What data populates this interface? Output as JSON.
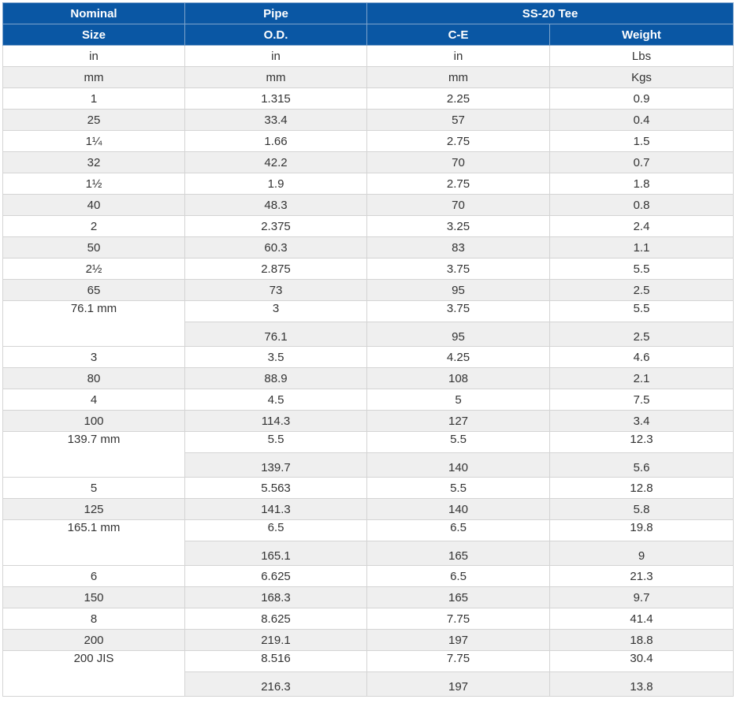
{
  "headers": {
    "nominal_line1": "Nominal",
    "nominal_line2": "Size",
    "pipe_line1": "Pipe",
    "pipe_line2": "O.D.",
    "group": "SS-20 Tee",
    "ce": "C-E",
    "weight": "Weight"
  },
  "units": {
    "in": [
      "in",
      "in",
      "in",
      "Lbs"
    ],
    "mm": [
      "mm",
      "mm",
      "mm",
      "Kgs"
    ]
  },
  "rows": [
    {
      "size": "1",
      "od": "1.315",
      "ce": "2.25",
      "weight": "0.9"
    },
    {
      "size": "25",
      "od": "33.4",
      "ce": "57",
      "weight": "0.4"
    },
    {
      "size": "1¼",
      "od": "1.66",
      "ce": "2.75",
      "weight": "1.5"
    },
    {
      "size": "32",
      "od": "42.2",
      "ce": "70",
      "weight": "0.7"
    },
    {
      "size": "1½",
      "od": "1.9",
      "ce": "2.75",
      "weight": "1.8"
    },
    {
      "size": "40",
      "od": "48.3",
      "ce": "70",
      "weight": "0.8"
    },
    {
      "size": "2",
      "od": "2.375",
      "ce": "3.25",
      "weight": "2.4"
    },
    {
      "size": "50",
      "od": "60.3",
      "ce": "83",
      "weight": "1.1"
    },
    {
      "size": "2½",
      "od": "2.875",
      "ce": "3.75",
      "weight": "5.5"
    },
    {
      "size": "65",
      "od": "73",
      "ce": "95",
      "weight": "2.5"
    },
    {
      "size": "76.1 mm",
      "od_a": "3",
      "ce_a": "3.75",
      "weight_a": "5.5",
      "od_b": "76.1",
      "ce_b": "95",
      "weight_b": "2.5"
    },
    {
      "size": "3",
      "od": "3.5",
      "ce": "4.25",
      "weight": "4.6"
    },
    {
      "size": "80",
      "od": "88.9",
      "ce": "108",
      "weight": "2.1"
    },
    {
      "size": "4",
      "od": "4.5",
      "ce": "5",
      "weight": "7.5"
    },
    {
      "size": "100",
      "od": "114.3",
      "ce": "127",
      "weight": "3.4"
    },
    {
      "size": "139.7 mm",
      "od_a": "5.5",
      "ce_a": "5.5",
      "weight_a": "12.3",
      "od_b": "139.7",
      "ce_b": "140",
      "weight_b": "5.6"
    },
    {
      "size": "5",
      "od": "5.563",
      "ce": "5.5",
      "weight": "12.8"
    },
    {
      "size": "125",
      "od": "141.3",
      "ce": "140",
      "weight": "5.8"
    },
    {
      "size": "165.1 mm",
      "od_a": "6.5",
      "ce_a": "6.5",
      "weight_a": "19.8",
      "od_b": "165.1",
      "ce_b": "165",
      "weight_b": "9"
    },
    {
      "size": "6",
      "od": "6.625",
      "ce": "6.5",
      "weight": "21.3"
    },
    {
      "size": "150",
      "od": "168.3",
      "ce": "165",
      "weight": "9.7"
    },
    {
      "size": "8",
      "od": "8.625",
      "ce": "7.75",
      "weight": "41.4"
    },
    {
      "size": "200",
      "od": "219.1",
      "ce": "197",
      "weight": "18.8"
    },
    {
      "size": "200 JIS",
      "od_a": "8.516",
      "ce_a": "7.75",
      "weight_a": "30.4",
      "od_b": "216.3",
      "ce_b": "197",
      "weight_b": "13.8"
    }
  ],
  "colors": {
    "header_bg": "#0a57a4",
    "header_text": "#ffffff",
    "alt_row_bg": "#efefef",
    "border": "#d4d4d4"
  }
}
